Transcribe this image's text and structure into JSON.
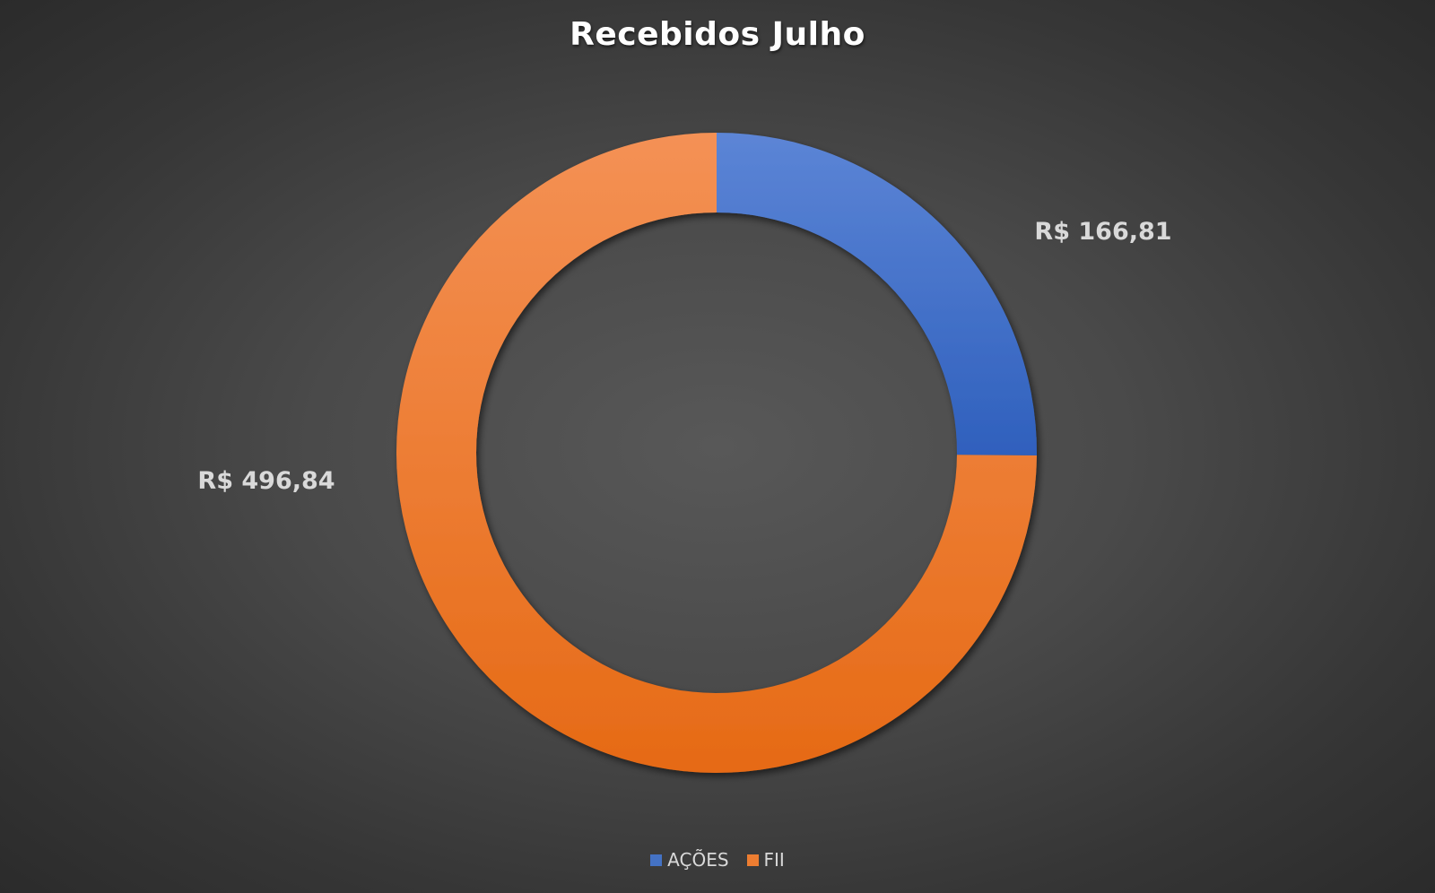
{
  "chart_data": {
    "type": "pie",
    "variant": "donut",
    "title": "Recebidos Julho",
    "categories": [
      "AÇÕES",
      "FII"
    ],
    "values": [
      166.81,
      496.84
    ],
    "data_labels": [
      "R$ 166,81",
      "R$ 496,84"
    ],
    "colors": [
      "#4472C4",
      "#ED7D31"
    ],
    "legend_position": "bottom"
  }
}
